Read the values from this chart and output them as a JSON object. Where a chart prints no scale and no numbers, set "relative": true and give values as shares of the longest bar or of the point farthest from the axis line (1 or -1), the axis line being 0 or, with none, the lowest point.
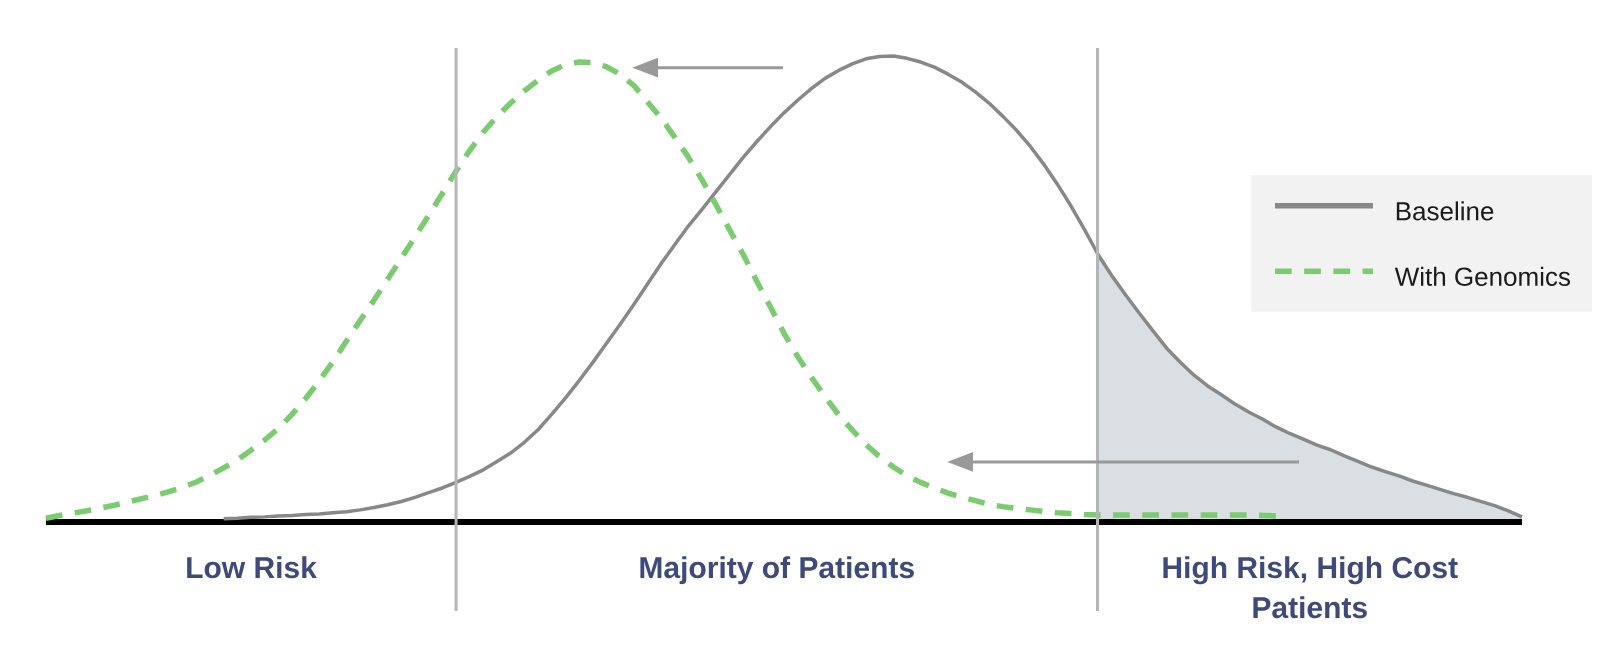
{
  "chart_data": {
    "type": "line",
    "relative": true,
    "categories": [
      null,
      null,
      null,
      null,
      null,
      null,
      null,
      null,
      null,
      null,
      null,
      null,
      null,
      null,
      null,
      null,
      null,
      null,
      null,
      null,
      null,
      null,
      null,
      null,
      null,
      null,
      null,
      null,
      null,
      null,
      null,
      null,
      null,
      null,
      null,
      null,
      null,
      null,
      null,
      null,
      null,
      null,
      null,
      null,
      null,
      null,
      null,
      null,
      null,
      null,
      null,
      null,
      null,
      null,
      null,
      null,
      null,
      null,
      null,
      null,
      null,
      null,
      null,
      null,
      null,
      null,
      null,
      null,
      null,
      null,
      null,
      null,
      null,
      null,
      null,
      null,
      null,
      null,
      null,
      null,
      null,
      null,
      null,
      null,
      null,
      null,
      null,
      null,
      null,
      null,
      null,
      null,
      null,
      null,
      null,
      null,
      null,
      null,
      null,
      null,
      null,
      null,
      null,
      null,
      null,
      null,
      null,
      null,
      null
    ],
    "series": [
      {
        "name": "Baseline",
        "color": "#888888",
        "line_style": "solid",
        "values": [
          null,
          null,
          null,
          null,
          null,
          null,
          null,
          null,
          null,
          null,
          null,
          null,
          null,
          0.007,
          0.008,
          0.01,
          0.011,
          0.013,
          0.014,
          0.016,
          0.017,
          0.02,
          0.022,
          0.026,
          0.031,
          0.037,
          0.044,
          0.053,
          0.063,
          0.073,
          0.085,
          0.098,
          0.112,
          0.13,
          0.148,
          0.171,
          0.198,
          0.231,
          0.266,
          0.303,
          0.342,
          0.383,
          0.424,
          0.466,
          0.51,
          0.554,
          0.595,
          0.635,
          0.671,
          0.708,
          0.745,
          0.782,
          0.816,
          0.848,
          0.878,
          0.905,
          0.93,
          0.952,
          0.969,
          0.983,
          0.994,
          0.999,
          1.0,
          0.995,
          0.987,
          0.976,
          0.961,
          0.944,
          0.923,
          0.899,
          0.871,
          0.841,
          0.807,
          0.768,
          0.725,
          0.678,
          0.627,
          0.573,
          0.528,
          0.487,
          0.448,
          0.41,
          0.373,
          0.343,
          0.315,
          0.292,
          0.273,
          0.253,
          0.236,
          0.221,
          0.204,
          0.19,
          0.178,
          0.165,
          0.155,
          0.142,
          0.13,
          0.118,
          0.108,
          0.099,
          0.088,
          0.079,
          0.07,
          0.061,
          0.053,
          0.044,
          0.035,
          0.024,
          0.011
        ]
      },
      {
        "name": "With Genomics",
        "color": "#7BCB70",
        "line_style": "dashed",
        "values": [
          0.008,
          0.014,
          0.019,
          0.024,
          0.03,
          0.036,
          0.043,
          0.05,
          0.057,
          0.065,
          0.074,
          0.086,
          0.1,
          0.116,
          0.133,
          0.154,
          0.176,
          0.201,
          0.231,
          0.265,
          0.303,
          0.344,
          0.389,
          0.433,
          0.476,
          0.521,
          0.566,
          0.612,
          0.658,
          0.705,
          0.753,
          0.797,
          0.837,
          0.87,
          0.899,
          0.925,
          0.948,
          0.968,
          0.981,
          0.987,
          0.986,
          0.977,
          0.961,
          0.937,
          0.902,
          0.867,
          0.826,
          0.783,
          0.734,
          0.682,
          0.628,
          0.575,
          0.517,
          0.462,
          0.405,
          0.355,
          0.311,
          0.269,
          0.23,
          0.197,
          0.166,
          0.14,
          0.118,
          0.099,
          0.085,
          0.073,
          0.062,
          0.053,
          0.046,
          0.038,
          0.033,
          0.029,
          0.026,
          0.023,
          0.02,
          0.018,
          0.016,
          0.015,
          0.015,
          0.015,
          0.015,
          0.015,
          0.015,
          0.015,
          0.015,
          0.015,
          0.015,
          0.015,
          0.015,
          0.014,
          0.013,
          null,
          null,
          null,
          null,
          null,
          null,
          null,
          null,
          null,
          null,
          null,
          null,
          null,
          null,
          null,
          null,
          null,
          null
        ]
      },
      {
        "type": "area",
        "color": "#D9DFE3",
        "values": [
          null,
          null,
          null,
          null,
          null,
          null,
          null,
          null,
          null,
          null,
          null,
          null,
          null,
          null,
          null,
          null,
          null,
          null,
          null,
          null,
          null,
          null,
          null,
          null,
          null,
          null,
          null,
          null,
          null,
          null,
          null,
          null,
          null,
          null,
          null,
          null,
          null,
          null,
          null,
          null,
          null,
          null,
          null,
          null,
          null,
          null,
          null,
          null,
          null,
          null,
          null,
          null,
          null,
          null,
          null,
          null,
          null,
          null,
          null,
          null,
          null,
          null,
          null,
          null,
          null,
          null,
          null,
          null,
          null,
          null,
          null,
          null,
          null,
          null,
          null,
          null,
          null,
          0.573,
          0.528,
          0.487,
          0.448,
          0.41,
          0.373,
          0.343,
          0.315,
          0.292,
          0.273,
          0.253,
          0.236,
          0.221,
          0.204,
          0.19,
          0.178,
          0.165,
          0.155,
          0.142,
          0.13,
          0.118,
          0.108,
          0.099,
          0.088,
          0.079,
          0.07,
          0.061,
          0.053,
          0.044,
          0.035,
          0.024,
          0.011
        ]
      }
    ],
    "annotations": [
      "Low Risk",
      "Majority of Patients",
      "High Risk, High Cost Patients"
    ],
    "legend": "right"
  }
}
